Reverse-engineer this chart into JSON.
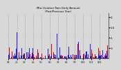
{
  "title": "Mlw Outdoor Rain Daily Amount\n(Past/Previous Year)",
  "background_color": "#d8d8d8",
  "plot_bg_color": "#d8d8d8",
  "grid_color": "#888888",
  "num_days": 365,
  "ylim": [
    0,
    2.2
  ],
  "ytick_values": [
    0.5,
    1.0,
    1.5,
    2.0
  ],
  "ytick_labels": [
    ".5",
    "1.",
    "1.5",
    "2."
  ],
  "current_color": "#0000ee",
  "prev_color": "#dd0000",
  "bar_width": 1.0,
  "rain_prob": 0.55,
  "seed_current": 12,
  "seed_prev": 99,
  "num_vgridlines": 11,
  "month_starts": [
    0,
    31,
    59,
    90,
    120,
    151,
    181,
    212,
    243,
    273,
    304,
    334
  ],
  "month_labels": [
    "1/1",
    "2/1",
    "3/1",
    "4/1",
    "5/1",
    "6/1",
    "7/1",
    "8/1",
    "9/1",
    "10/1",
    "11/1",
    "12/1"
  ]
}
